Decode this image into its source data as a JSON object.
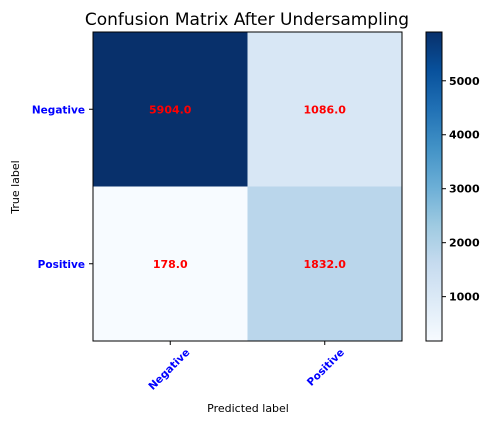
{
  "chart_data": {
    "type": "heatmap",
    "title": "Confusion Matrix After Undersampling",
    "xlabel": "Predicted label",
    "ylabel": "True label",
    "x_categories": [
      "Negative",
      "Positive"
    ],
    "y_categories": [
      "Negative",
      "Positive"
    ],
    "values": [
      [
        5904.0,
        1086.0
      ],
      [
        178.0,
        1832.0
      ]
    ],
    "cell_labels": [
      [
        "5904.0",
        "1086.0"
      ],
      [
        "178.0",
        "1832.0"
      ]
    ],
    "colormap": "Blues",
    "colorbar": {
      "range": [
        178,
        5904
      ],
      "ticks": [
        1000,
        2000,
        3000,
        4000,
        5000
      ],
      "tick_labels": [
        "1000",
        "2000",
        "3000",
        "4000",
        "5000"
      ]
    },
    "colors": {
      "cell_label": "#ff0000",
      "tick_label": "#0000ff"
    }
  }
}
